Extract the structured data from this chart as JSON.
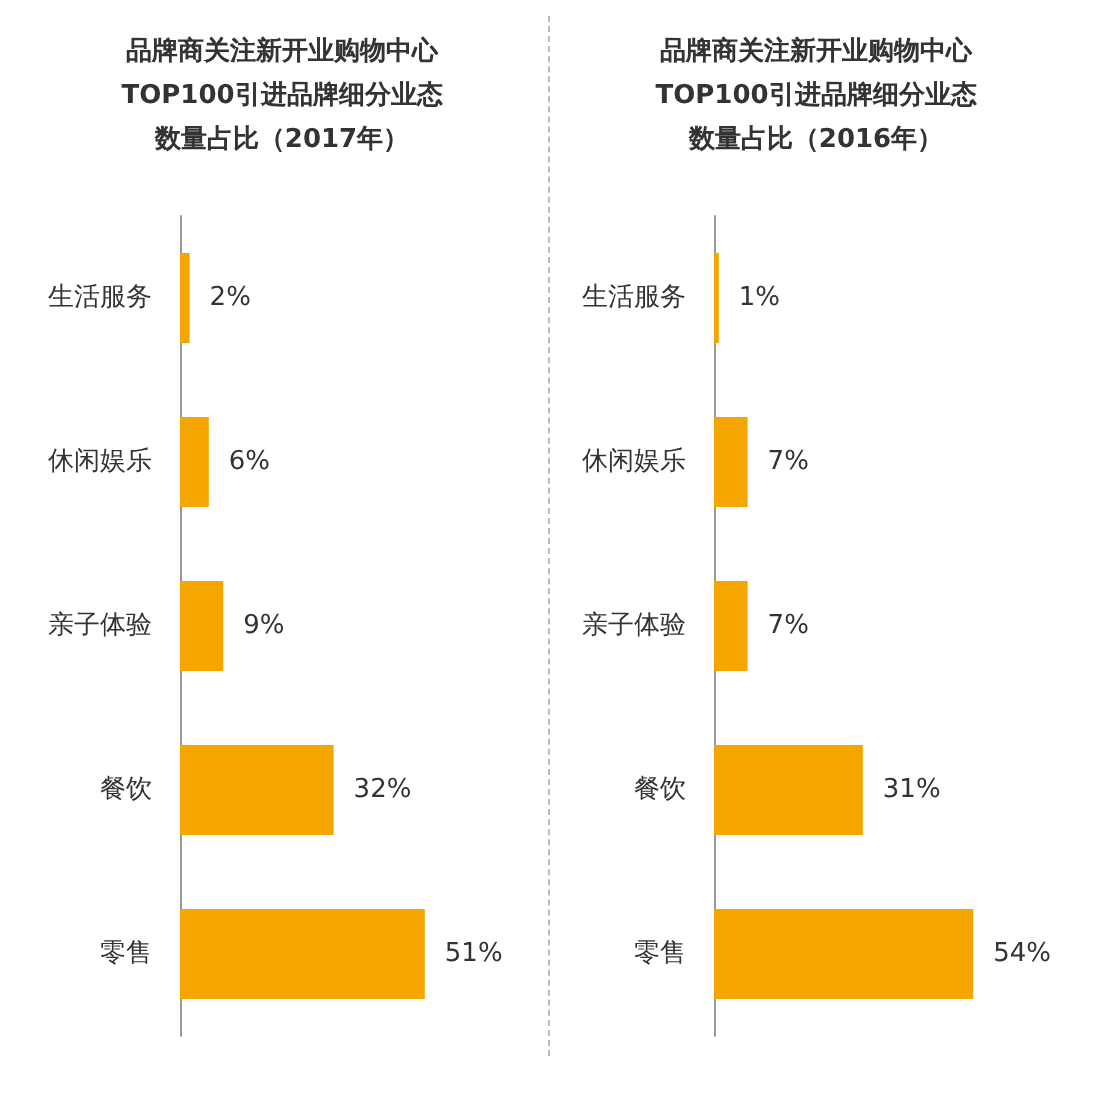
{
  "chart_data": [
    {
      "type": "bar",
      "orientation": "horizontal",
      "title": "品牌商关注新开业购物中心TOP100引进品牌细分业态数量占比（2017年）",
      "categories": [
        "生活服务",
        "休闲娱乐",
        "亲子体验",
        "餐饮",
        "零售"
      ],
      "values": [
        2,
        6,
        9,
        32,
        51
      ],
      "value_labels": [
        "2%",
        "6%",
        "9%",
        "32%",
        "51%"
      ],
      "color": "#f5a500"
    },
    {
      "type": "bar",
      "orientation": "horizontal",
      "title": "品牌商关注新开业购物中心TOP100引进品牌细分业态数量占比（2016年）",
      "categories": [
        "生活服务",
        "休闲娱乐",
        "亲子体验",
        "餐饮",
        "零售"
      ],
      "values": [
        1,
        7,
        7,
        31,
        54
      ],
      "value_labels": [
        "1%",
        "7%",
        "7%",
        "31%",
        "54%"
      ],
      "color": "#f5a500"
    }
  ]
}
